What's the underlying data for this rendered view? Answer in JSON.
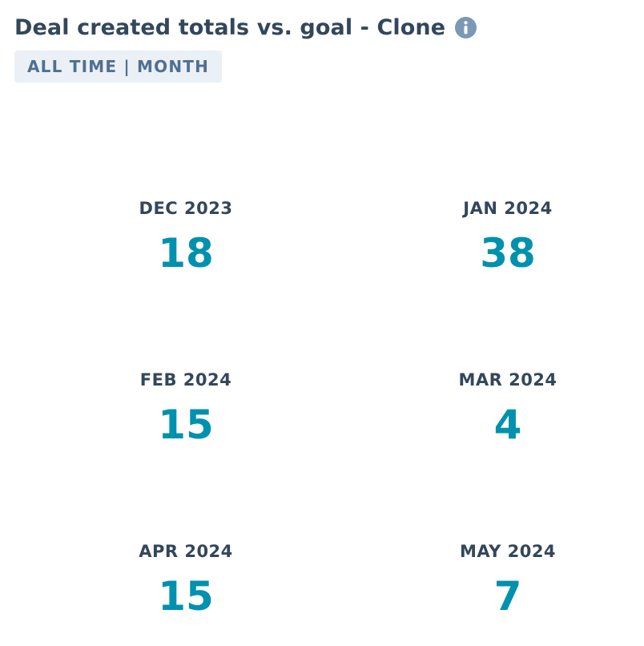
{
  "header": {
    "title": "Deal created totals vs. goal - Clone",
    "info_icon": "info-circle-icon",
    "filter_tag": "ALL TIME | MONTH"
  },
  "colors": {
    "title": "#33475b",
    "label": "#33475b",
    "value": "#0091ae",
    "tag_background": "#eaf0f6",
    "tag_text": "#516f90",
    "info_icon": "#7c98b6"
  },
  "metrics": [
    {
      "label": "DEC 2023",
      "value": "18"
    },
    {
      "label": "JAN 2024",
      "value": "38"
    },
    {
      "label": "FEB 2024",
      "value": "15"
    },
    {
      "label": "MAR 2024",
      "value": "4"
    },
    {
      "label": "APR 2024",
      "value": "15"
    },
    {
      "label": "MAY 2024",
      "value": "7"
    }
  ]
}
